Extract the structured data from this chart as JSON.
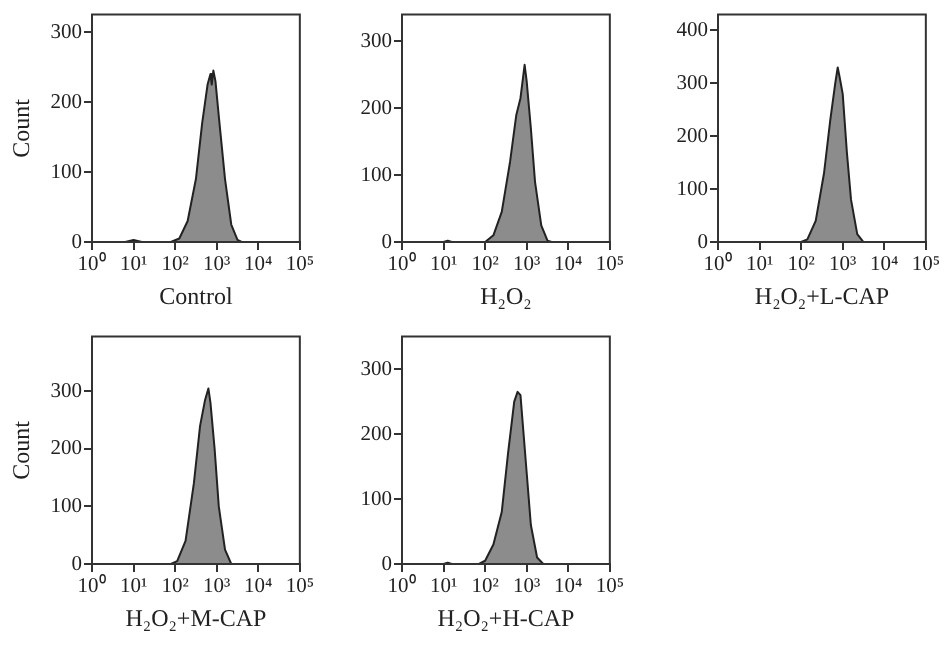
{
  "chart_data": [
    {
      "type": "area",
      "xlabel": "Control",
      "ylabel": "Count",
      "log": "x",
      "legend": false,
      "grid": false,
      "xlim": [
        1,
        100000
      ],
      "ylim": [
        0,
        325
      ],
      "xticks": [
        {
          "value": 1,
          "label": "10⁰"
        },
        {
          "value": 10,
          "label": "10¹"
        },
        {
          "value": 100,
          "label": "10²"
        },
        {
          "value": 1000,
          "label": "10³"
        },
        {
          "value": 10000,
          "label": "10⁴"
        },
        {
          "value": 100000,
          "label": "10⁵"
        }
      ],
      "yticks": [
        0,
        100,
        200,
        300
      ],
      "series": [
        {
          "color": "#8c8c8c",
          "x": [
            1,
            6.3,
            10,
            15.8,
            79,
            126,
            200,
            316,
            447,
            603,
            708,
            759,
            832,
            933,
            1122,
            1585,
            2239,
            3162,
            3981,
            100000
          ],
          "values": [
            0,
            0,
            3,
            0,
            0,
            5,
            30,
            90,
            170,
            225,
            240,
            225,
            245,
            230,
            180,
            90,
            25,
            3,
            0,
            0
          ]
        }
      ]
    },
    {
      "type": "area",
      "xlabel": "H₂O₂",
      "log": "x",
      "legend": false,
      "grid": false,
      "xlim": [
        1,
        100000
      ],
      "ylim": [
        0,
        340
      ],
      "xticks": [
        {
          "value": 1,
          "label": "10⁰"
        },
        {
          "value": 10,
          "label": "10¹"
        },
        {
          "value": 100,
          "label": "10²"
        },
        {
          "value": 1000,
          "label": "10³"
        },
        {
          "value": 10000,
          "label": "10⁴"
        },
        {
          "value": 100000,
          "label": "10⁵"
        }
      ],
      "yticks": [
        0,
        100,
        200,
        300
      ],
      "series": [
        {
          "color": "#8c8c8c",
          "x": [
            1,
            10,
            12.6,
            15.8,
            100,
            158,
            251,
            398,
            562,
            708,
            891,
            1000,
            1259,
            1585,
            2239,
            3162,
            3981,
            100000
          ],
          "values": [
            0,
            0,
            2,
            0,
            0,
            10,
            45,
            120,
            190,
            215,
            265,
            240,
            170,
            90,
            25,
            2,
            0,
            0
          ]
        }
      ]
    },
    {
      "type": "area",
      "xlabel": "H₂O₂+L-CAP",
      "log": "x",
      "legend": false,
      "grid": false,
      "xlim": [
        1,
        100000
      ],
      "ylim": [
        0,
        430
      ],
      "xticks": [
        {
          "value": 1,
          "label": "10⁰"
        },
        {
          "value": 10,
          "label": "10¹"
        },
        {
          "value": 100,
          "label": "10²"
        },
        {
          "value": 1000,
          "label": "10³"
        },
        {
          "value": 10000,
          "label": "10⁴"
        },
        {
          "value": 100000,
          "label": "10⁵"
        }
      ],
      "yticks": [
        0,
        100,
        200,
        300,
        400
      ],
      "series": [
        {
          "color": "#8c8c8c",
          "x": [
            1,
            100,
            141,
            224,
            355,
            501,
            661,
            759,
            851,
            1000,
            1259,
            1585,
            2239,
            3162,
            100000
          ],
          "values": [
            0,
            0,
            5,
            40,
            130,
            230,
            300,
            330,
            310,
            280,
            170,
            80,
            15,
            0,
            0
          ]
        }
      ]
    },
    {
      "type": "area",
      "xlabel": "H₂O₂+M-CAP",
      "ylabel": "Count",
      "log": "x",
      "legend": false,
      "grid": false,
      "xlim": [
        1,
        100000
      ],
      "ylim": [
        0,
        395
      ],
      "xticks": [
        {
          "value": 1,
          "label": "10⁰"
        },
        {
          "value": 10,
          "label": "10¹"
        },
        {
          "value": 100,
          "label": "10²"
        },
        {
          "value": 1000,
          "label": "10³"
        },
        {
          "value": 10000,
          "label": "10⁴"
        },
        {
          "value": 100000,
          "label": "10⁵"
        }
      ],
      "yticks": [
        0,
        100,
        200,
        300
      ],
      "series": [
        {
          "color": "#8c8c8c",
          "x": [
            1,
            79,
            112,
            178,
            282,
            398,
            525,
            631,
            708,
            891,
            1122,
            1585,
            2239,
            100000
          ],
          "values": [
            0,
            0,
            5,
            40,
            140,
            240,
            285,
            305,
            280,
            200,
            100,
            25,
            0,
            0
          ]
        }
      ]
    },
    {
      "type": "area",
      "xlabel": "H₂O₂+H-CAP",
      "log": "x",
      "legend": false,
      "grid": false,
      "xlim": [
        1,
        100000
      ],
      "ylim": [
        0,
        350
      ],
      "xticks": [
        {
          "value": 1,
          "label": "10⁰"
        },
        {
          "value": 10,
          "label": "10¹"
        },
        {
          "value": 100,
          "label": "10²"
        },
        {
          "value": 1000,
          "label": "10³"
        },
        {
          "value": 10000,
          "label": "10⁴"
        },
        {
          "value": 100000,
          "label": "10⁵"
        }
      ],
      "yticks": [
        0,
        100,
        200,
        300
      ],
      "series": [
        {
          "color": "#8c8c8c",
          "x": [
            1,
            10,
            12.6,
            15.8,
            71,
            100,
            158,
            251,
            355,
            501,
            603,
            708,
            794,
            1000,
            1259,
            1778,
            2512,
            100000
          ],
          "values": [
            0,
            0,
            2,
            0,
            0,
            5,
            30,
            80,
            170,
            250,
            265,
            260,
            220,
            140,
            60,
            10,
            0,
            0
          ]
        }
      ]
    }
  ]
}
